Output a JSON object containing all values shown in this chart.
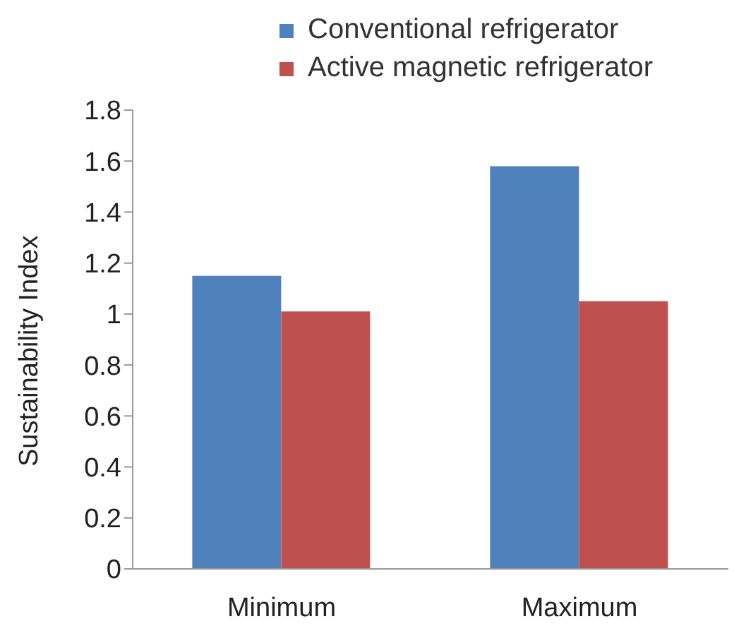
{
  "chart_data": {
    "type": "bar",
    "ylabel": "Sustainability Index",
    "categories": [
      "Minimum",
      "Maximum"
    ],
    "series": [
      {
        "name": "Conventional refrigerator",
        "color": "#4f81bd",
        "values": [
          1.15,
          1.58
        ]
      },
      {
        "name": "Active magnetic refrigerator",
        "color": "#c0504d",
        "values": [
          1.01,
          1.05
        ]
      }
    ],
    "ylim": [
      0,
      1.8
    ],
    "yticks": [
      0,
      0.2,
      0.4,
      0.6,
      0.8,
      1,
      1.2,
      1.4,
      1.6,
      1.8
    ],
    "grid": false,
    "legend": "top"
  }
}
